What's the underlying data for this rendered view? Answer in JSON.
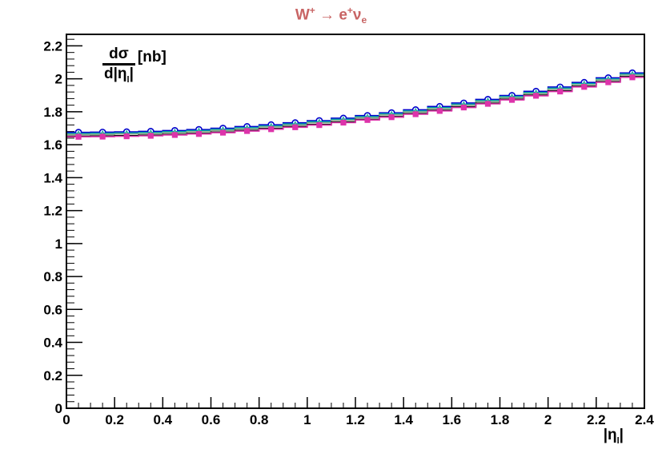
{
  "title": {
    "parts": [
      "W",
      "+",
      " → e",
      "+",
      "ν",
      "e"
    ]
  },
  "y_axis_label": {
    "numerator": "dσ",
    "denominator": "d|η",
    "denominator_sub": "l",
    "denominator_end": "|",
    "unit": "[nb]"
  },
  "x_axis_label": {
    "main": "|η",
    "sub": "l",
    "end": "|"
  },
  "chart_data": {
    "type": "line",
    "xlim": [
      0,
      2.4
    ],
    "ylim": [
      0,
      2.27
    ],
    "x_ticks": [
      "0",
      "0.2",
      "0.4",
      "0.6",
      "0.8",
      "1",
      "1.2",
      "1.4",
      "1.6",
      "1.8",
      "2",
      "2.2",
      "2.4"
    ],
    "y_ticks": [
      "0",
      "0.2",
      "0.4",
      "0.6",
      "0.8",
      "1",
      "1.2",
      "1.4",
      "1.6",
      "1.8",
      "2",
      "2.2"
    ],
    "x_tick_values": [
      0,
      0.2,
      0.4,
      0.6,
      0.8,
      1,
      1.2,
      1.4,
      1.6,
      1.8,
      2,
      2.2,
      2.4
    ],
    "y_tick_values": [
      0,
      0.2,
      0.4,
      0.6,
      0.8,
      1,
      1.2,
      1.4,
      1.6,
      1.8,
      2,
      2.2
    ],
    "x": [
      0.05,
      0.15,
      0.25,
      0.35,
      0.45,
      0.55,
      0.65,
      0.75,
      0.85,
      0.95,
      1.05,
      1.15,
      1.25,
      1.35,
      1.45,
      1.55,
      1.65,
      1.75,
      1.85,
      1.95,
      2.05,
      2.15,
      2.25,
      2.35
    ],
    "grid": false,
    "series": [
      {
        "color": "#0000cc",
        "marker": "open-circle",
        "values": [
          1.675,
          1.676,
          1.678,
          1.681,
          1.686,
          1.692,
          1.7,
          1.71,
          1.721,
          1.733,
          1.746,
          1.761,
          1.777,
          1.794,
          1.812,
          1.832,
          1.853,
          1.875,
          1.899,
          1.924,
          1.95,
          1.978,
          2.006,
          2.036
        ]
      },
      {
        "color": "#00aaaa",
        "marker": "triangle",
        "values": [
          1.668,
          1.669,
          1.671,
          1.674,
          1.679,
          1.685,
          1.693,
          1.703,
          1.714,
          1.726,
          1.739,
          1.754,
          1.77,
          1.787,
          1.805,
          1.825,
          1.846,
          1.868,
          1.892,
          1.917,
          1.943,
          1.971,
          1.999,
          2.029
        ]
      },
      {
        "color": "#88aa88",
        "marker": "cross",
        "values": [
          1.662,
          1.663,
          1.665,
          1.668,
          1.673,
          1.679,
          1.687,
          1.697,
          1.708,
          1.72,
          1.733,
          1.748,
          1.764,
          1.781,
          1.799,
          1.819,
          1.84,
          1.862,
          1.886,
          1.911,
          1.937,
          1.965,
          1.993,
          2.023
        ]
      },
      {
        "color": "#000000",
        "marker": "dot",
        "values": [
          1.652,
          1.653,
          1.655,
          1.658,
          1.663,
          1.669,
          1.677,
          1.687,
          1.698,
          1.71,
          1.723,
          1.738,
          1.754,
          1.771,
          1.789,
          1.809,
          1.83,
          1.852,
          1.876,
          1.901,
          1.927,
          1.955,
          1.983,
          2.013
        ]
      },
      {
        "color": "#dd33aa",
        "marker": "filled-square",
        "values": [
          1.648,
          1.649,
          1.651,
          1.654,
          1.659,
          1.665,
          1.673,
          1.683,
          1.694,
          1.706,
          1.719,
          1.734,
          1.75,
          1.767,
          1.785,
          1.805,
          1.826,
          1.848,
          1.872,
          1.897,
          1.923,
          1.951,
          1.979,
          2.009
        ]
      }
    ]
  }
}
